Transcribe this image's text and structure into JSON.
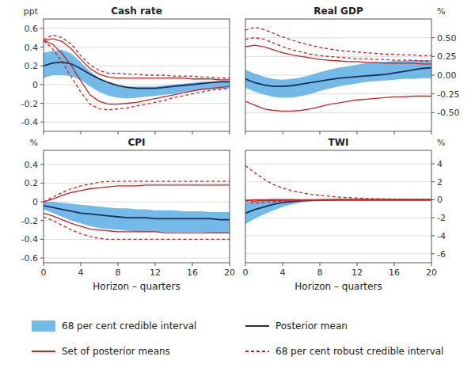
{
  "chart_data": [
    {
      "type": "line",
      "title": "Cash rate",
      "ylabel": "ppt",
      "x": [
        0,
        1,
        2,
        3,
        4,
        5,
        6,
        7,
        8,
        9,
        10,
        11,
        12,
        13,
        14,
        15,
        16,
        17,
        18,
        19,
        20
      ],
      "xlim": [
        0,
        20
      ],
      "xticks": [
        0,
        4,
        8,
        12,
        16,
        20
      ],
      "ylim": [
        -0.5,
        0.7
      ],
      "yticks": [
        -0.4,
        -0.2,
        0,
        0.2,
        0.4,
        0.6
      ],
      "grid": true,
      "tick_labels": "y",
      "series": [
        {
          "name": "68 per cent credible interval",
          "type": "area",
          "color": "#5baee4",
          "lower": [
            0.07,
            0.1,
            0.1,
            0.09,
            0.05,
            -0.02,
            -0.08,
            -0.12,
            -0.14,
            -0.15,
            -0.14,
            -0.13,
            -0.12,
            -0.11,
            -0.1,
            -0.08,
            -0.07,
            -0.06,
            -0.05,
            -0.05,
            -0.04
          ],
          "upper": [
            0.34,
            0.36,
            0.37,
            0.33,
            0.24,
            0.14,
            0.07,
            0.02,
            -0.01,
            -0.02,
            -0.02,
            -0.02,
            -0.02,
            -0.01,
            0.0,
            0.01,
            0.02,
            0.03,
            0.03,
            0.04,
            0.04
          ]
        },
        {
          "name": "Posterior mean",
          "type": "line",
          "color": "#1a2f5a",
          "line_style": "solid",
          "values": [
            0.2,
            0.23,
            0.24,
            0.22,
            0.17,
            0.11,
            0.06,
            0.02,
            -0.01,
            -0.03,
            -0.04,
            -0.04,
            -0.04,
            -0.03,
            -0.02,
            -0.01,
            0.0,
            0.01,
            0.02,
            0.03,
            0.03
          ]
        },
        {
          "name": "Set of posterior means",
          "type": "lines",
          "color": "#cc2222",
          "line_style": "solid",
          "lower": [
            0.47,
            0.43,
            0.33,
            0.2,
            0.04,
            -0.11,
            -0.18,
            -0.21,
            -0.21,
            -0.2,
            -0.19,
            -0.17,
            -0.15,
            -0.13,
            -0.11,
            -0.09,
            -0.07,
            -0.05,
            -0.04,
            -0.03,
            -0.02
          ],
          "upper": [
            0.47,
            0.49,
            0.46,
            0.38,
            0.27,
            0.17,
            0.11,
            0.08,
            0.07,
            0.07,
            0.07,
            0.07,
            0.07,
            0.07,
            0.07,
            0.07,
            0.06,
            0.06,
            0.06,
            0.05,
            0.05
          ]
        },
        {
          "name": "68 per cent robust credible interval",
          "type": "lines",
          "color": "#cc2222",
          "line_style": "dashed",
          "lower": [
            0.47,
            0.38,
            0.24,
            0.08,
            -0.08,
            -0.21,
            -0.26,
            -0.27,
            -0.26,
            -0.25,
            -0.23,
            -0.21,
            -0.19,
            -0.17,
            -0.14,
            -0.12,
            -0.1,
            -0.08,
            -0.06,
            -0.05,
            -0.04
          ],
          "upper": [
            0.48,
            0.53,
            0.5,
            0.43,
            0.31,
            0.21,
            0.15,
            0.12,
            0.12,
            0.11,
            0.11,
            0.1,
            0.1,
            0.1,
            0.09,
            0.09,
            0.09,
            0.08,
            0.08,
            0.07,
            0.07
          ]
        }
      ]
    },
    {
      "type": "line",
      "title": "Real GDP",
      "y2label": "%",
      "x": [
        0,
        1,
        2,
        3,
        4,
        5,
        6,
        7,
        8,
        9,
        10,
        11,
        12,
        13,
        14,
        15,
        16,
        17,
        18,
        19,
        20
      ],
      "xlim": [
        0,
        20
      ],
      "xticks": [
        0,
        4,
        8,
        12,
        16,
        20
      ],
      "y2lim": [
        -0.75,
        0.75
      ],
      "y2ticks": [
        {
          "value": -0.5,
          "label": "-0.50"
        },
        {
          "value": -0.25,
          "label": "-0.25"
        },
        {
          "value": 0.0,
          "label": "0.00"
        },
        {
          "value": 0.25,
          "label": "0.25"
        },
        {
          "value": 0.5,
          "label": "0.50"
        }
      ],
      "grid": true,
      "tick_labels": "y",
      "series": [
        {
          "name": "68 per cent credible interval",
          "type": "area",
          "color": "#5baee4",
          "axis": "y2",
          "lower": [
            -0.17,
            -0.22,
            -0.26,
            -0.29,
            -0.3,
            -0.3,
            -0.28,
            -0.25,
            -0.21,
            -0.18,
            -0.15,
            -0.13,
            -0.11,
            -0.09,
            -0.08,
            -0.07,
            -0.06,
            -0.05,
            -0.05,
            -0.04,
            -0.04
          ],
          "upper": [
            0.07,
            0.02,
            -0.02,
            -0.05,
            -0.06,
            -0.05,
            -0.03,
            0.0,
            0.04,
            0.07,
            0.1,
            0.12,
            0.14,
            0.16,
            0.17,
            0.18,
            0.19,
            0.19,
            0.2,
            0.2,
            0.2
          ]
        },
        {
          "name": "Posterior mean",
          "type": "line",
          "color": "#1a2f5a",
          "line_style": "solid",
          "axis": "y2",
          "values": [
            -0.05,
            -0.1,
            -0.13,
            -0.15,
            -0.15,
            -0.14,
            -0.12,
            -0.1,
            -0.08,
            -0.06,
            -0.04,
            -0.03,
            -0.02,
            -0.01,
            0.0,
            0.01,
            0.03,
            0.05,
            0.07,
            0.09,
            0.1
          ]
        },
        {
          "name": "Set of posterior means",
          "type": "lines",
          "color": "#cc2222",
          "line_style": "solid",
          "axis": "y2",
          "lower": [
            -0.35,
            -0.4,
            -0.45,
            -0.47,
            -0.48,
            -0.48,
            -0.47,
            -0.45,
            -0.42,
            -0.39,
            -0.37,
            -0.35,
            -0.33,
            -0.32,
            -0.31,
            -0.3,
            -0.29,
            -0.29,
            -0.28,
            -0.28,
            -0.28
          ],
          "upper": [
            0.38,
            0.4,
            0.38,
            0.34,
            0.3,
            0.27,
            0.25,
            0.23,
            0.21,
            0.2,
            0.19,
            0.18,
            0.18,
            0.17,
            0.17,
            0.16,
            0.16,
            0.16,
            0.16,
            0.15,
            0.15
          ]
        },
        {
          "name": "68 per cent robust credible interval",
          "type": "lines",
          "color": "#cc2222",
          "line_style": "dashed",
          "axis": "y2",
          "lower": [
            0.48,
            0.5,
            0.48,
            0.43,
            0.38,
            0.34,
            0.31,
            0.28,
            0.26,
            0.25,
            0.24,
            0.23,
            0.22,
            0.22,
            0.21,
            0.21,
            0.2,
            0.2,
            0.2,
            0.19,
            0.19
          ],
          "upper": [
            0.6,
            0.64,
            0.61,
            0.56,
            0.51,
            0.47,
            0.43,
            0.4,
            0.37,
            0.35,
            0.33,
            0.32,
            0.31,
            0.3,
            0.29,
            0.28,
            0.28,
            0.27,
            0.27,
            0.26,
            0.26
          ]
        }
      ]
    },
    {
      "type": "line",
      "title": "CPI",
      "ylabel": "%",
      "xlabel": "Horizon – quarters",
      "x": [
        0,
        1,
        2,
        3,
        4,
        5,
        6,
        7,
        8,
        9,
        10,
        11,
        12,
        13,
        14,
        15,
        16,
        17,
        18,
        19,
        20
      ],
      "xlim": [
        0,
        20
      ],
      "xticks": [
        0,
        4,
        8,
        12,
        16,
        20
      ],
      "ylim": [
        -0.65,
        0.55
      ],
      "yticks": [
        -0.6,
        -0.4,
        -0.2,
        0,
        0.2,
        0.4
      ],
      "grid": true,
      "series": [
        {
          "name": "68 per cent credible interval",
          "type": "area",
          "color": "#5baee4",
          "lower": [
            -0.08,
            -0.12,
            -0.16,
            -0.2,
            -0.23,
            -0.26,
            -0.28,
            -0.29,
            -0.3,
            -0.31,
            -0.32,
            -0.32,
            -0.32,
            -0.32,
            -0.32,
            -0.32,
            -0.32,
            -0.32,
            -0.33,
            -0.33,
            -0.33
          ],
          "upper": [
            0.0,
            0.0,
            -0.01,
            -0.02,
            -0.03,
            -0.04,
            -0.05,
            -0.06,
            -0.07,
            -0.07,
            -0.08,
            -0.08,
            -0.09,
            -0.09,
            -0.09,
            -0.1,
            -0.1,
            -0.1,
            -0.11,
            -0.11,
            -0.11
          ]
        },
        {
          "name": "Posterior mean",
          "type": "line",
          "color": "#1a2f5a",
          "line_style": "solid",
          "values": [
            -0.04,
            -0.06,
            -0.08,
            -0.1,
            -0.12,
            -0.13,
            -0.14,
            -0.15,
            -0.16,
            -0.17,
            -0.17,
            -0.17,
            -0.18,
            -0.18,
            -0.18,
            -0.18,
            -0.18,
            -0.18,
            -0.18,
            -0.19,
            -0.19
          ]
        },
        {
          "name": "Set of posterior means",
          "type": "lines",
          "color": "#cc2222",
          "line_style": "solid",
          "lower": [
            -0.12,
            -0.15,
            -0.19,
            -0.23,
            -0.26,
            -0.29,
            -0.3,
            -0.31,
            -0.32,
            -0.32,
            -0.32,
            -0.32,
            -0.32,
            -0.33,
            -0.33,
            -0.33,
            -0.33,
            -0.33,
            -0.33,
            -0.33,
            -0.33
          ],
          "upper": [
            0.0,
            0.03,
            0.07,
            0.1,
            0.12,
            0.14,
            0.15,
            0.16,
            0.17,
            0.17,
            0.17,
            0.18,
            0.18,
            0.18,
            0.18,
            0.18,
            0.18,
            0.18,
            0.18,
            0.18,
            0.18
          ]
        },
        {
          "name": "68 per cent robust credible interval",
          "type": "lines",
          "color": "#cc2222",
          "line_style": "dashed",
          "lower": [
            -0.16,
            -0.2,
            -0.25,
            -0.3,
            -0.34,
            -0.37,
            -0.39,
            -0.4,
            -0.4,
            -0.4,
            -0.4,
            -0.4,
            -0.4,
            -0.4,
            -0.4,
            -0.4,
            -0.4,
            -0.4,
            -0.4,
            -0.4,
            -0.4
          ],
          "upper": [
            0.0,
            0.05,
            0.1,
            0.14,
            0.17,
            0.19,
            0.21,
            0.22,
            0.22,
            0.22,
            0.22,
            0.22,
            0.22,
            0.22,
            0.22,
            0.22,
            0.22,
            0.22,
            0.22,
            0.22,
            0.22
          ]
        }
      ]
    },
    {
      "type": "line",
      "title": "TWI",
      "y2label": "%",
      "xlabel": "Horizon – quarters",
      "x": [
        0,
        1,
        2,
        3,
        4,
        5,
        6,
        7,
        8,
        9,
        10,
        11,
        12,
        13,
        14,
        15,
        16,
        17,
        18,
        19,
        20
      ],
      "xlim": [
        0,
        20
      ],
      "xticks": [
        0,
        4,
        8,
        12,
        16,
        20
      ],
      "y2lim": [
        -7.0,
        5.5
      ],
      "y2ticks": [
        -6,
        -4,
        -2,
        0,
        2,
        4
      ],
      "grid": true,
      "series": [
        {
          "name": "68 per cent credible interval",
          "type": "area",
          "color": "#5baee4",
          "axis": "y2",
          "lower": [
            -2.7,
            -2.1,
            -1.6,
            -1.2,
            -0.8,
            -0.5,
            -0.3,
            -0.2,
            -0.15,
            -0.1,
            -0.07,
            -0.05,
            -0.04,
            -0.03,
            -0.02,
            -0.02,
            -0.01,
            -0.01,
            -0.01,
            0.0,
            0.0
          ],
          "upper": [
            -0.3,
            -0.1,
            0.05,
            0.1,
            0.1,
            0.1,
            0.05,
            0.03,
            0.02,
            0.01,
            0.01,
            0.01,
            0.01,
            0.0,
            0.0,
            0.0,
            0.0,
            0.0,
            0.0,
            0.0,
            0.0
          ]
        },
        {
          "name": "Posterior mean",
          "type": "line",
          "color": "#1a2f5a",
          "line_style": "solid",
          "axis": "y2",
          "values": [
            -1.5,
            -1.1,
            -0.8,
            -0.5,
            -0.3,
            -0.2,
            -0.1,
            -0.05,
            -0.02,
            -0.01,
            0.0,
            0.0,
            0.0,
            0.0,
            0.0,
            0.0,
            0.0,
            0.0,
            0.0,
            0.0,
            0.0
          ]
        },
        {
          "name": "Set of posterior means",
          "type": "lines",
          "color": "#cc2222",
          "line_style": "solid",
          "axis": "y2",
          "lower": [
            -0.05,
            -0.15,
            -0.1,
            -0.07,
            -0.05,
            -0.03,
            -0.02,
            -0.01,
            -0.01,
            0.0,
            0.0,
            0.0,
            0.0,
            0.0,
            0.0,
            0.0,
            0.0,
            0.0,
            0.0,
            0.0,
            0.0
          ],
          "upper": [
            -0.05,
            0.0,
            0.0,
            0.0,
            0.0,
            0.0,
            0.0,
            0.0,
            0.0,
            0.0,
            0.0,
            0.0,
            0.0,
            0.0,
            0.0,
            0.0,
            0.0,
            0.0,
            0.0,
            0.0,
            0.0
          ]
        },
        {
          "name": "68 per cent robust credible interval",
          "type": "lines",
          "color": "#cc2222",
          "line_style": "dashed",
          "axis": "y2",
          "lower": [
            -0.1,
            -0.4,
            -0.3,
            -0.2,
            -0.15,
            -0.12,
            -0.1,
            -0.08,
            -0.06,
            -0.05,
            -0.04,
            -0.03,
            -0.03,
            -0.02,
            -0.02,
            -0.01,
            -0.01,
            -0.01,
            -0.01,
            0.0,
            0.0
          ],
          "upper": [
            3.8,
            3.0,
            2.3,
            1.7,
            1.3,
            1.0,
            0.8,
            0.6,
            0.5,
            0.4,
            0.3,
            0.25,
            0.2,
            0.15,
            0.12,
            0.1,
            0.08,
            0.07,
            0.06,
            0.05,
            0.04
          ]
        }
      ]
    }
  ]
}
